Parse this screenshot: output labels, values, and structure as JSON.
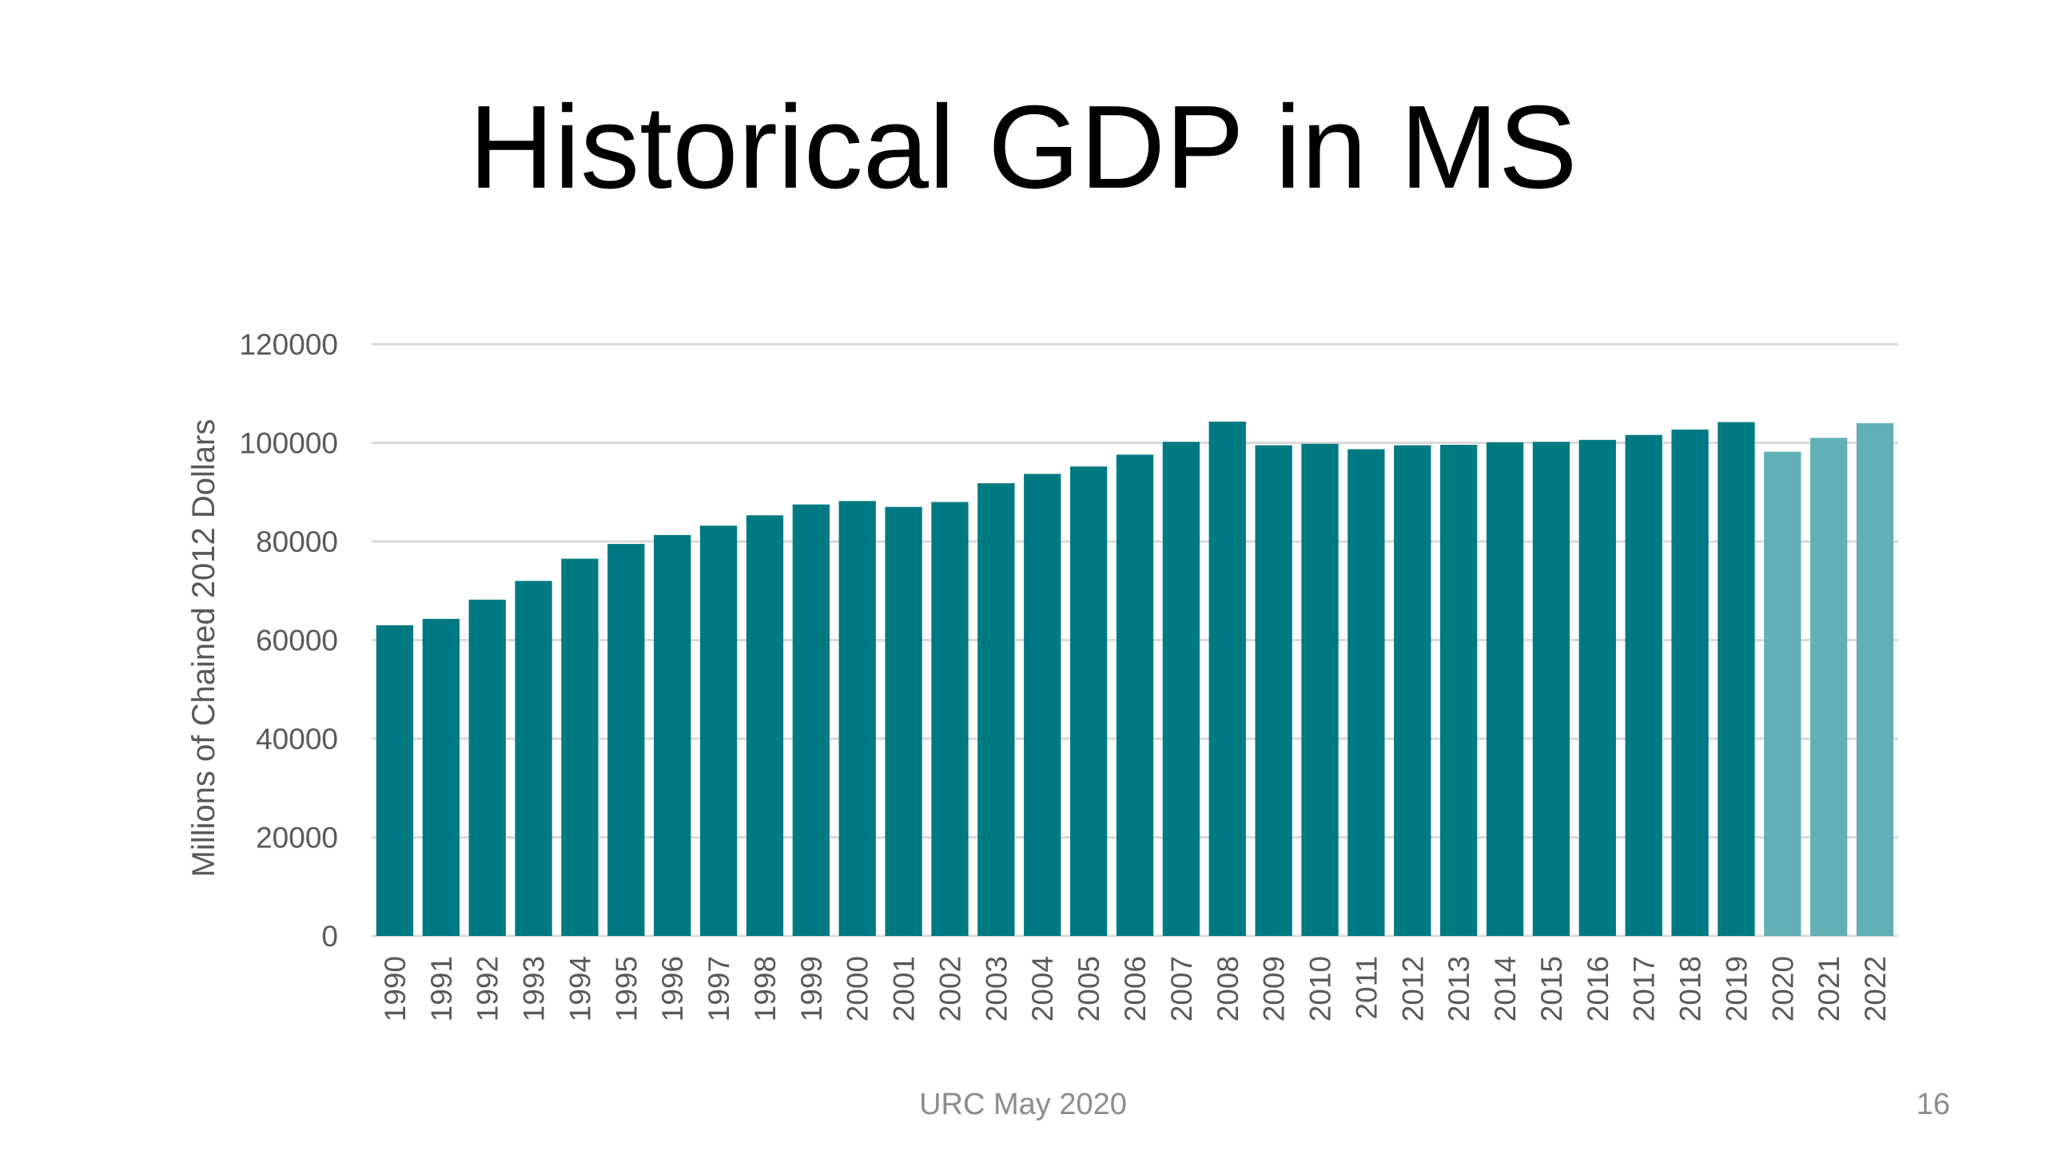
{
  "slide": {
    "title": "Historical GDP in MS",
    "footer": "URC May 2020",
    "page_number": "16"
  },
  "colors": {
    "actual": "#007a82",
    "forecast": "#62afb5",
    "grid": "#d9d9d9",
    "axis_text": "#595959"
  },
  "chart_data": {
    "type": "bar",
    "title": "",
    "xlabel": "",
    "ylabel": "Millions of Chained 2012 Dollars",
    "ylim": [
      0,
      120000
    ],
    "yticks": [
      0,
      20000,
      40000,
      60000,
      80000,
      100000,
      120000
    ],
    "grid": true,
    "categories": [
      "1990",
      "1991",
      "1992",
      "1993",
      "1994",
      "1995",
      "1996",
      "1997",
      "1998",
      "1999",
      "2000",
      "2001",
      "2002",
      "2003",
      "2004",
      "2005",
      "2006",
      "2007",
      "2008",
      "2009",
      "2010",
      "2011",
      "2012",
      "2013",
      "2014",
      "2015",
      "2016",
      "2017",
      "2018",
      "2019",
      "2020",
      "2021",
      "2022"
    ],
    "values": [
      63000,
      64300,
      68200,
      72000,
      76500,
      79500,
      81300,
      83200,
      85300,
      87500,
      88200,
      87000,
      88000,
      91800,
      93700,
      95200,
      97600,
      100200,
      104300,
      99500,
      99800,
      98700,
      99500,
      99600,
      100100,
      100200,
      100600,
      101600,
      102700,
      104200,
      98200,
      101000,
      104000
    ],
    "forecast_categories": [
      "2020",
      "2021",
      "2022"
    ]
  }
}
